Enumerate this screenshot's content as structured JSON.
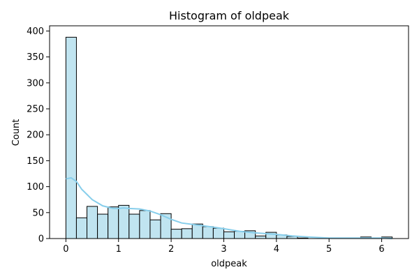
{
  "chart_data": {
    "type": "bar",
    "title": "Histogram of oldpeak",
    "xlabel": "oldpeak",
    "ylabel": "Count",
    "xlim": [
      -0.31,
      6.51
    ],
    "ylim": [
      0,
      410
    ],
    "xticks": [
      0,
      1,
      2,
      3,
      4,
      5,
      6
    ],
    "yticks": [
      0,
      50,
      100,
      150,
      200,
      250,
      300,
      350,
      400
    ],
    "grid": false,
    "legend": "none",
    "colors": {
      "bar_fill": "#c0e4f0",
      "bar_edge": "#000000",
      "kde_line": "#87ceeb",
      "axis": "#000000"
    },
    "bins": [
      {
        "start": 0.0,
        "end": 0.2,
        "count": 388
      },
      {
        "start": 0.2,
        "end": 0.4,
        "count": 40
      },
      {
        "start": 0.4,
        "end": 0.6,
        "count": 62
      },
      {
        "start": 0.6,
        "end": 0.8,
        "count": 47
      },
      {
        "start": 0.8,
        "end": 1.0,
        "count": 61
      },
      {
        "start": 1.0,
        "end": 1.2,
        "count": 64
      },
      {
        "start": 1.2,
        "end": 1.4,
        "count": 47
      },
      {
        "start": 1.4,
        "end": 1.6,
        "count": 54
      },
      {
        "start": 1.6,
        "end": 1.8,
        "count": 36
      },
      {
        "start": 1.8,
        "end": 2.0,
        "count": 48
      },
      {
        "start": 2.0,
        "end": 2.2,
        "count": 18
      },
      {
        "start": 2.2,
        "end": 2.4,
        "count": 19
      },
      {
        "start": 2.4,
        "end": 2.6,
        "count": 28
      },
      {
        "start": 2.6,
        "end": 2.8,
        "count": 23
      },
      {
        "start": 2.8,
        "end": 3.0,
        "count": 20
      },
      {
        "start": 3.0,
        "end": 3.2,
        "count": 13
      },
      {
        "start": 3.2,
        "end": 3.4,
        "count": 14
      },
      {
        "start": 3.4,
        "end": 3.6,
        "count": 15
      },
      {
        "start": 3.6,
        "end": 3.8,
        "count": 5
      },
      {
        "start": 3.8,
        "end": 4.0,
        "count": 12
      },
      {
        "start": 4.0,
        "end": 4.2,
        "count": 7
      },
      {
        "start": 4.2,
        "end": 4.4,
        "count": 4
      },
      {
        "start": 4.4,
        "end": 4.6,
        "count": 1
      },
      {
        "start": 4.6,
        "end": 4.8,
        "count": 0
      },
      {
        "start": 4.8,
        "end": 5.0,
        "count": 0
      },
      {
        "start": 5.0,
        "end": 5.2,
        "count": 0
      },
      {
        "start": 5.2,
        "end": 5.4,
        "count": 0
      },
      {
        "start": 5.4,
        "end": 5.6,
        "count": 0
      },
      {
        "start": 5.6,
        "end": 5.8,
        "count": 3
      },
      {
        "start": 5.8,
        "end": 6.0,
        "count": 0
      },
      {
        "start": 6.0,
        "end": 6.2,
        "count": 3
      }
    ],
    "kde": {
      "x": [
        0.0,
        0.1,
        0.2,
        0.3,
        0.5,
        0.7,
        0.9,
        1.0,
        1.1,
        1.2,
        1.4,
        1.6,
        1.8,
        2.0,
        2.2,
        2.5,
        2.8,
        3.0,
        3.3,
        3.6,
        4.0,
        4.3,
        4.6,
        5.0,
        5.5,
        6.0,
        6.2
      ],
      "y": [
        115,
        117,
        110,
        95,
        75,
        63,
        58,
        58,
        59,
        58,
        57,
        53,
        46,
        37,
        30,
        26,
        22,
        19,
        14,
        11,
        8,
        5,
        3,
        1,
        1,
        1,
        0
      ]
    }
  }
}
